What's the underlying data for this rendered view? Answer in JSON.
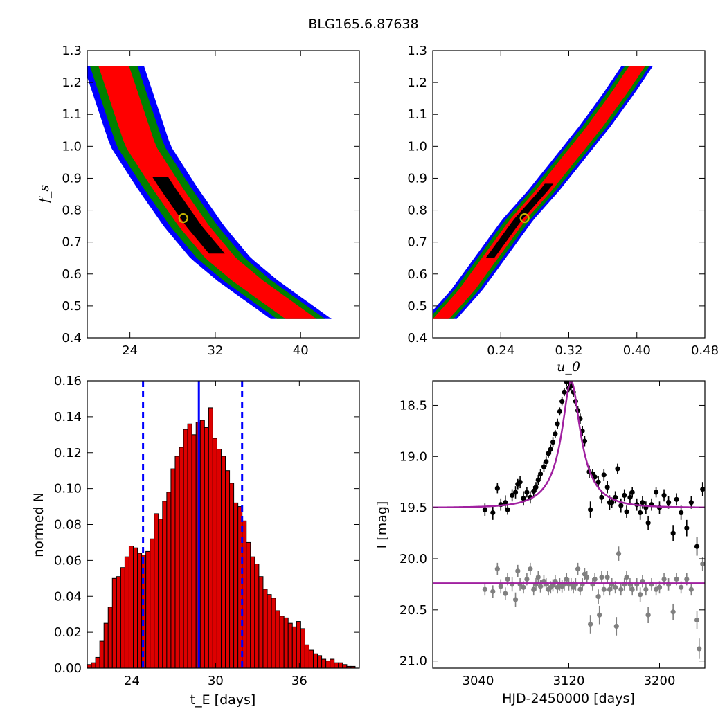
{
  "figure": {
    "title": "BLG165.6.87638"
  },
  "colors": {
    "sigma1": "#ff0000",
    "sigma2": "#008000",
    "sigma3": "#0000ff",
    "best": "#000000",
    "marker_edge": "#c8b400",
    "bar": "#dd0000",
    "median": "#0000ff",
    "model": "#a020a0",
    "data_main": "#000000",
    "data_resid": "#808080"
  },
  "chart_data": [
    {
      "id": "panel_fs_tE",
      "type": "heatmap",
      "title": "",
      "xlabel": "",
      "ylabel": "f_s",
      "xlim": [
        20,
        45.5
      ],
      "ylim": [
        0.4,
        1.3
      ],
      "xticks": [
        "24",
        "32",
        "40"
      ],
      "yticks": [
        "0.4",
        "0.5",
        "0.6",
        "0.7",
        "0.8",
        "0.9",
        "1.0",
        "1.1",
        "1.2",
        "1.3"
      ],
      "contour_curve": [
        [
          22.5,
          1.25
        ],
        [
          25.0,
          1.0
        ],
        [
          27.5,
          0.87
        ],
        [
          30.0,
          0.75
        ],
        [
          32.5,
          0.65
        ],
        [
          35.0,
          0.58
        ],
        [
          37.5,
          0.52
        ],
        [
          40.0,
          0.46
        ]
      ],
      "widths": {
        "best": 0.7,
        "sigma1": 1.4,
        "sigma2": 2.2,
        "sigma3": 2.8
      },
      "best_fit": [
        29.0,
        0.775
      ]
    },
    {
      "id": "panel_fs_u0",
      "type": "heatmap",
      "title": "",
      "xlabel": "u_0",
      "ylabel": "",
      "xlim": [
        0.16,
        0.48
      ],
      "ylim": [
        0.4,
        1.3
      ],
      "xticks": [
        "0.24",
        "0.32",
        "0.40",
        "0.48"
      ],
      "yticks": [
        "0.4",
        "0.5",
        "0.6",
        "0.7",
        "0.8",
        "0.9",
        "1.0",
        "1.1",
        "1.2",
        "1.3"
      ],
      "contour_curve": [
        [
          0.17,
          0.46
        ],
        [
          0.2,
          0.55
        ],
        [
          0.23,
          0.66
        ],
        [
          0.26,
          0.77
        ],
        [
          0.29,
          0.86
        ],
        [
          0.32,
          0.96
        ],
        [
          0.35,
          1.06
        ],
        [
          0.38,
          1.17
        ],
        [
          0.4,
          1.25
        ]
      ],
      "widths": {
        "best": 0.0045,
        "sigma1": 0.009,
        "sigma2": 0.014,
        "sigma3": 0.018
      },
      "best_fit": [
        0.268,
        0.775
      ]
    },
    {
      "id": "panel_tE_hist",
      "type": "bar",
      "title": "",
      "xlabel": "t_E [days]",
      "ylabel": "normed N",
      "xlim": [
        20.8,
        40.3
      ],
      "ylim": [
        0.0,
        0.16
      ],
      "xticks": [
        "24",
        "30",
        "36"
      ],
      "yticks": [
        "0.00",
        "0.02",
        "0.04",
        "0.06",
        "0.08",
        "0.10",
        "0.12",
        "0.14",
        "0.16"
      ],
      "bin_start": 20.8,
      "bin_width": 0.3,
      "values": [
        0.002,
        0.003,
        0.006,
        0.015,
        0.025,
        0.034,
        0.05,
        0.051,
        0.056,
        0.062,
        0.068,
        0.067,
        0.064,
        0.063,
        0.065,
        0.072,
        0.086,
        0.083,
        0.093,
        0.098,
        0.111,
        0.118,
        0.123,
        0.133,
        0.136,
        0.13,
        0.137,
        0.138,
        0.134,
        0.145,
        0.128,
        0.122,
        0.118,
        0.11,
        0.103,
        0.092,
        0.09,
        0.082,
        0.07,
        0.062,
        0.058,
        0.051,
        0.044,
        0.041,
        0.039,
        0.032,
        0.029,
        0.028,
        0.025,
        0.023,
        0.026,
        0.022,
        0.013,
        0.01,
        0.008,
        0.007,
        0.005,
        0.004,
        0.005,
        0.003,
        0.003,
        0.002,
        0.001,
        0.001
      ],
      "median": 28.8,
      "lower": 24.8,
      "upper": 31.9
    },
    {
      "id": "panel_lightcurve",
      "type": "scatter",
      "title": "",
      "xlabel": "HJD-2450000 [days]",
      "ylabel": "I [mag]",
      "xlim": [
        3000,
        3240
      ],
      "ylim": [
        21.07,
        18.26
      ],
      "xticks": [
        "3040",
        "3120",
        "3200"
      ],
      "yticks": [
        "18.5",
        "19.0",
        "19.5",
        "20.0",
        "20.5",
        "21.0"
      ],
      "model": {
        "t0": 3122,
        "tE": 28.8,
        "u0": 0.268,
        "baseline": 19.5,
        "peak": 18.26
      },
      "residual_level": 20.24,
      "series": [
        {
          "points": [
            [
              3046,
              19.52,
              0.06
            ],
            [
              3053,
              19.55,
              0.07
            ],
            [
              3057,
              19.31,
              0.05
            ],
            [
              3060,
              19.47,
              0.06
            ],
            [
              3064,
              19.45,
              0.07
            ],
            [
              3066,
              19.52,
              0.05
            ],
            [
              3070,
              19.38,
              0.06
            ],
            [
              3073,
              19.35,
              0.06
            ],
            [
              3075,
              19.27,
              0.05
            ],
            [
              3077,
              19.25,
              0.06
            ],
            [
              3080,
              19.41,
              0.07
            ],
            [
              3083,
              19.35,
              0.05
            ],
            [
              3086,
              19.4,
              0.06
            ],
            [
              3089,
              19.34,
              0.05
            ],
            [
              3091,
              19.3,
              0.05
            ],
            [
              3093,
              19.23,
              0.05
            ],
            [
              3095,
              19.17,
              0.05
            ],
            [
              3098,
              19.1,
              0.05
            ],
            [
              3100,
              19.05,
              0.05
            ],
            [
              3102,
              18.97,
              0.04
            ],
            [
              3104,
              18.93,
              0.05
            ],
            [
              3106,
              18.86,
              0.05
            ],
            [
              3108,
              18.78,
              0.04
            ],
            [
              3110,
              18.68,
              0.05
            ],
            [
              3112,
              18.56,
              0.04
            ],
            [
              3114,
              18.46,
              0.04
            ],
            [
              3116,
              18.37,
              0.04
            ],
            [
              3118,
              18.27,
              0.04
            ],
            [
              3120,
              18.33,
              0.04
            ],
            [
              3122,
              18.31,
              0.05
            ],
            [
              3124,
              18.37,
              0.05
            ],
            [
              3126,
              18.46,
              0.05
            ],
            [
              3128,
              18.55,
              0.04
            ],
            [
              3130,
              18.63,
              0.05
            ],
            [
              3132,
              18.75,
              0.05
            ],
            [
              3134,
              18.85,
              0.05
            ],
            [
              3138,
              19.15,
              0.06
            ],
            [
              3139,
              19.52,
              0.08
            ],
            [
              3141,
              19.17,
              0.05
            ],
            [
              3143,
              19.2,
              0.05
            ],
            [
              3146,
              19.25,
              0.06
            ],
            [
              3149,
              19.4,
              0.06
            ],
            [
              3151,
              19.18,
              0.06
            ],
            [
              3154,
              19.3,
              0.06
            ],
            [
              3156,
              19.45,
              0.07
            ],
            [
              3158,
              19.45,
              0.05
            ],
            [
              3161,
              19.4,
              0.06
            ],
            [
              3163,
              19.12,
              0.05
            ],
            [
              3166,
              19.48,
              0.07
            ],
            [
              3169,
              19.38,
              0.06
            ],
            [
              3171,
              19.54,
              0.06
            ],
            [
              3174,
              19.4,
              0.06
            ],
            [
              3176,
              19.35,
              0.05
            ],
            [
              3180,
              19.47,
              0.06
            ],
            [
              3183,
              19.55,
              0.07
            ],
            [
              3185,
              19.45,
              0.06
            ],
            [
              3188,
              19.5,
              0.06
            ],
            [
              3190,
              19.65,
              0.07
            ],
            [
              3193,
              19.47,
              0.06
            ],
            [
              3197,
              19.35,
              0.05
            ],
            [
              3200,
              19.5,
              0.06
            ],
            [
              3204,
              19.38,
              0.06
            ],
            [
              3208,
              19.45,
              0.06
            ],
            [
              3212,
              19.75,
              0.08
            ],
            [
              3215,
              19.42,
              0.06
            ],
            [
              3219,
              19.55,
              0.07
            ],
            [
              3224,
              19.7,
              0.08
            ],
            [
              3228,
              19.45,
              0.06
            ],
            [
              3233,
              19.88,
              0.09
            ],
            [
              3238,
              19.32,
              0.07
            ]
          ]
        },
        {
          "points": [
            [
              3046,
              20.3,
              0.06
            ],
            [
              3053,
              20.32,
              0.06
            ],
            [
              3057,
              20.1,
              0.06
            ],
            [
              3060,
              20.27,
              0.07
            ],
            [
              3064,
              20.34,
              0.06
            ],
            [
              3066,
              20.2,
              0.06
            ],
            [
              3070,
              20.25,
              0.07
            ],
            [
              3073,
              20.4,
              0.07
            ],
            [
              3075,
              20.12,
              0.06
            ],
            [
              3077,
              20.25,
              0.06
            ],
            [
              3080,
              20.28,
              0.06
            ],
            [
              3083,
              20.2,
              0.06
            ],
            [
              3086,
              20.1,
              0.06
            ],
            [
              3089,
              20.3,
              0.06
            ],
            [
              3091,
              20.25,
              0.06
            ],
            [
              3093,
              20.18,
              0.06
            ],
            [
              3095,
              20.27,
              0.06
            ],
            [
              3098,
              20.22,
              0.06
            ],
            [
              3100,
              20.25,
              0.06
            ],
            [
              3102,
              20.3,
              0.06
            ],
            [
              3104,
              20.28,
              0.06
            ],
            [
              3106,
              20.26,
              0.06
            ],
            [
              3108,
              20.22,
              0.06
            ],
            [
              3110,
              20.28,
              0.06
            ],
            [
              3112,
              20.25,
              0.06
            ],
            [
              3114,
              20.27,
              0.06
            ],
            [
              3116,
              20.25,
              0.06
            ],
            [
              3118,
              20.2,
              0.06
            ],
            [
              3120,
              20.25,
              0.06
            ],
            [
              3122,
              20.25,
              0.06
            ],
            [
              3124,
              20.28,
              0.06
            ],
            [
              3126,
              20.25,
              0.06
            ],
            [
              3128,
              20.1,
              0.06
            ],
            [
              3130,
              20.3,
              0.06
            ],
            [
              3132,
              20.25,
              0.06
            ],
            [
              3134,
              20.15,
              0.06
            ],
            [
              3136,
              20.18,
              0.06
            ],
            [
              3139,
              20.64,
              0.09
            ],
            [
              3141,
              20.25,
              0.06
            ],
            [
              3143,
              20.2,
              0.06
            ],
            [
              3146,
              20.37,
              0.07
            ],
            [
              3147,
              20.55,
              0.09
            ],
            [
              3149,
              20.18,
              0.06
            ],
            [
              3151,
              20.3,
              0.06
            ],
            [
              3154,
              20.18,
              0.06
            ],
            [
              3156,
              20.3,
              0.06
            ],
            [
              3158,
              20.25,
              0.06
            ],
            [
              3161,
              20.28,
              0.06
            ],
            [
              3162,
              20.66,
              0.09
            ],
            [
              3164,
              19.95,
              0.07
            ],
            [
              3166,
              20.3,
              0.06
            ],
            [
              3169,
              20.25,
              0.06
            ],
            [
              3171,
              20.18,
              0.06
            ],
            [
              3174,
              20.25,
              0.06
            ],
            [
              3176,
              20.3,
              0.06
            ],
            [
              3180,
              20.25,
              0.06
            ],
            [
              3183,
              20.35,
              0.07
            ],
            [
              3185,
              20.22,
              0.06
            ],
            [
              3188,
              20.3,
              0.06
            ],
            [
              3190,
              20.55,
              0.08
            ],
            [
              3193,
              20.25,
              0.06
            ],
            [
              3197,
              20.3,
              0.06
            ],
            [
              3200,
              20.28,
              0.06
            ],
            [
              3204,
              20.2,
              0.06
            ],
            [
              3208,
              20.25,
              0.06
            ],
            [
              3212,
              20.52,
              0.08
            ],
            [
              3215,
              20.2,
              0.06
            ],
            [
              3219,
              20.28,
              0.06
            ],
            [
              3224,
              20.2,
              0.06
            ],
            [
              3228,
              20.3,
              0.06
            ],
            [
              3233,
              20.6,
              0.09
            ],
            [
              3235,
              20.88,
              0.1
            ],
            [
              3238,
              20.05,
              0.07
            ]
          ]
        }
      ]
    }
  ]
}
